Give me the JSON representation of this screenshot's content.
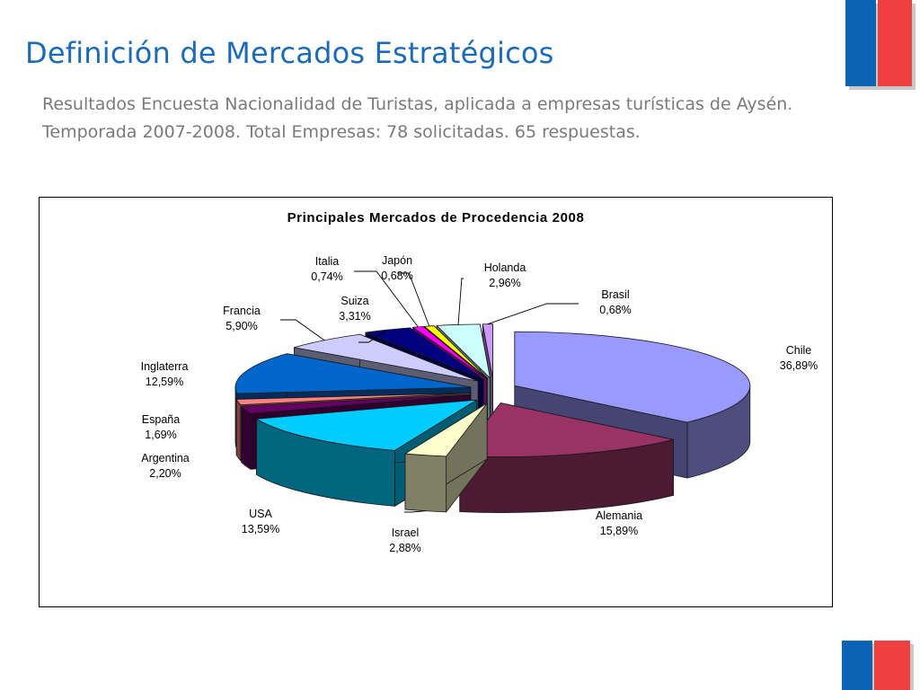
{
  "slide": {
    "title": "Definición de Mercados Estratégicos",
    "subtitle": "Resultados Encuesta Nacionalidad de Turistas, aplicada a empresas turísticas de Aysén. Temporada 2007-2008. Total Empresas: 78 solicitadas. 65 respuestas."
  },
  "branding": {
    "flag_colors": {
      "blue": "#0b63b5",
      "red": "#ef3f3f",
      "shadow": "#c8c8c8"
    }
  },
  "chart_data": {
    "type": "pie",
    "style": "3d-exploded",
    "title": "Principales Mercados de Procedencia 2008",
    "legend": "none",
    "slices": [
      {
        "label": "Chile",
        "value_label": "36,89%",
        "value": 36.89,
        "color": "#9999ff"
      },
      {
        "label": "Alemania",
        "value_label": "15,89%",
        "value": 15.89,
        "color": "#993366"
      },
      {
        "label": "Israel",
        "value_label": "2,88%",
        "value": 2.88,
        "color": "#ffffcc"
      },
      {
        "label": "USA",
        "value_label": "13,59%",
        "value": 13.59,
        "color": "#00ccff"
      },
      {
        "label": "Argentina",
        "value_label": "2,20%",
        "value": 2.2,
        "color": "#660066"
      },
      {
        "label": "España",
        "value_label": "1,69%",
        "value": 1.69,
        "color": "#ff8080"
      },
      {
        "label": "Inglaterra",
        "value_label": "12,59%",
        "value": 12.59,
        "color": "#0066cc"
      },
      {
        "label": "Francia",
        "value_label": "5,90%",
        "value": 5.9,
        "color": "#ccccff"
      },
      {
        "label": "Suiza",
        "value_label": "3,31%",
        "value": 3.31,
        "color": "#000080"
      },
      {
        "label": "Italia",
        "value_label": "0,74%",
        "value": 0.74,
        "color": "#ff00ff"
      },
      {
        "label": "Japón",
        "value_label": "0,68%",
        "value": 0.68,
        "color": "#ffff00"
      },
      {
        "label": "Holanda",
        "value_label": "2,96%",
        "value": 2.96,
        "color": "#ccffff"
      },
      {
        "label": "Brasil",
        "value_label": "0,68%",
        "value": 0.68,
        "color": "#cc99ff"
      }
    ]
  }
}
